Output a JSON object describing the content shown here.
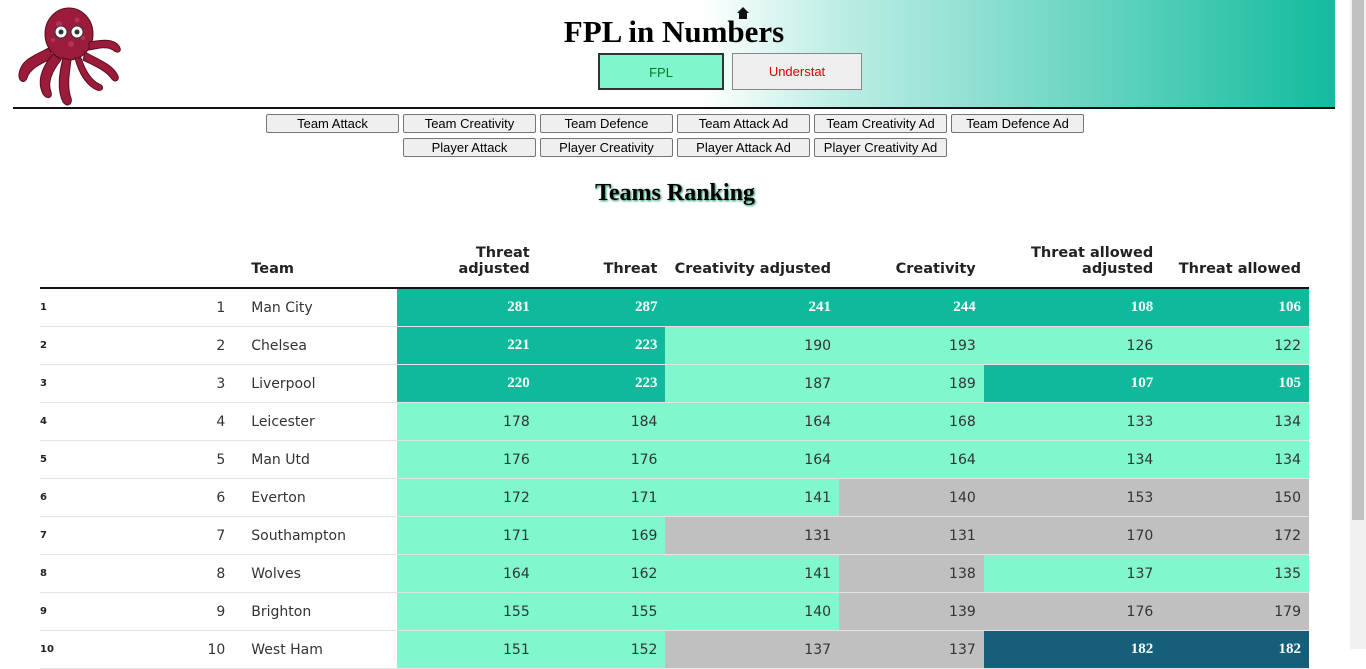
{
  "site": {
    "title": "FPL in Numbers"
  },
  "source_buttons": {
    "fpl": "FPL",
    "understat": "Understat"
  },
  "nav": {
    "row1": [
      "Team Attack",
      "Team Creativity",
      "Team Defence",
      "Team Attack Ad",
      "Team Creativity Ad",
      "Team Defence Ad"
    ],
    "row2": [
      "Player Attack",
      "Player Creativity",
      "Player Attack Ad",
      "Player Creativity Ad"
    ]
  },
  "section_title": "Teams Ranking",
  "table": {
    "headers": [
      "Team",
      "Threat adjusted",
      "Threat",
      "Creativity adjusted",
      "Creativity",
      "Threat allowed adjusted",
      "Threat allowed"
    ],
    "rows": [
      {
        "idx": "1",
        "rank": "1",
        "team": "Man City",
        "values": [
          "281",
          "287",
          "241",
          "244",
          "108",
          "106"
        ],
        "levels": [
          "hi",
          "hi",
          "hi",
          "hi",
          "hi",
          "hi"
        ]
      },
      {
        "idx": "2",
        "rank": "2",
        "team": "Chelsea",
        "values": [
          "221",
          "223",
          "190",
          "193",
          "126",
          "122"
        ],
        "levels": [
          "hi",
          "hi",
          "mid",
          "mid",
          "mid",
          "mid"
        ]
      },
      {
        "idx": "3",
        "rank": "3",
        "team": "Liverpool",
        "values": [
          "220",
          "223",
          "187",
          "189",
          "107",
          "105"
        ],
        "levels": [
          "hi",
          "hi",
          "mid",
          "mid",
          "hi",
          "hi"
        ]
      },
      {
        "idx": "4",
        "rank": "4",
        "team": "Leicester",
        "values": [
          "178",
          "184",
          "164",
          "168",
          "133",
          "134"
        ],
        "levels": [
          "mid",
          "mid",
          "mid",
          "mid",
          "mid",
          "mid"
        ]
      },
      {
        "idx": "5",
        "rank": "5",
        "team": "Man Utd",
        "values": [
          "176",
          "176",
          "164",
          "164",
          "134",
          "134"
        ],
        "levels": [
          "mid",
          "mid",
          "mid",
          "mid",
          "mid",
          "mid"
        ]
      },
      {
        "idx": "6",
        "rank": "6",
        "team": "Everton",
        "values": [
          "172",
          "171",
          "141",
          "140",
          "153",
          "150"
        ],
        "levels": [
          "mid",
          "mid",
          "mid",
          "low",
          "low",
          "low"
        ]
      },
      {
        "idx": "7",
        "rank": "7",
        "team": "Southampton",
        "values": [
          "171",
          "169",
          "131",
          "131",
          "170",
          "172"
        ],
        "levels": [
          "mid",
          "mid",
          "low",
          "low",
          "low",
          "low"
        ]
      },
      {
        "idx": "8",
        "rank": "8",
        "team": "Wolves",
        "values": [
          "164",
          "162",
          "141",
          "138",
          "137",
          "135"
        ],
        "levels": [
          "mid",
          "mid",
          "mid",
          "low",
          "mid",
          "mid"
        ]
      },
      {
        "idx": "9",
        "rank": "9",
        "team": "Brighton",
        "values": [
          "155",
          "155",
          "140",
          "139",
          "176",
          "179"
        ],
        "levels": [
          "mid",
          "mid",
          "mid",
          "low",
          "low",
          "low"
        ]
      },
      {
        "idx": "10",
        "rank": "10",
        "team": "West Ham",
        "values": [
          "151",
          "152",
          "137",
          "137",
          "182",
          "182"
        ],
        "levels": [
          "mid",
          "mid",
          "low",
          "low",
          "bad",
          "bad"
        ]
      }
    ]
  },
  "colors": {
    "best": "#0fb99b",
    "good": "#80f7cd",
    "neutral": "#c0c0c0",
    "worst": "#155f7a"
  }
}
